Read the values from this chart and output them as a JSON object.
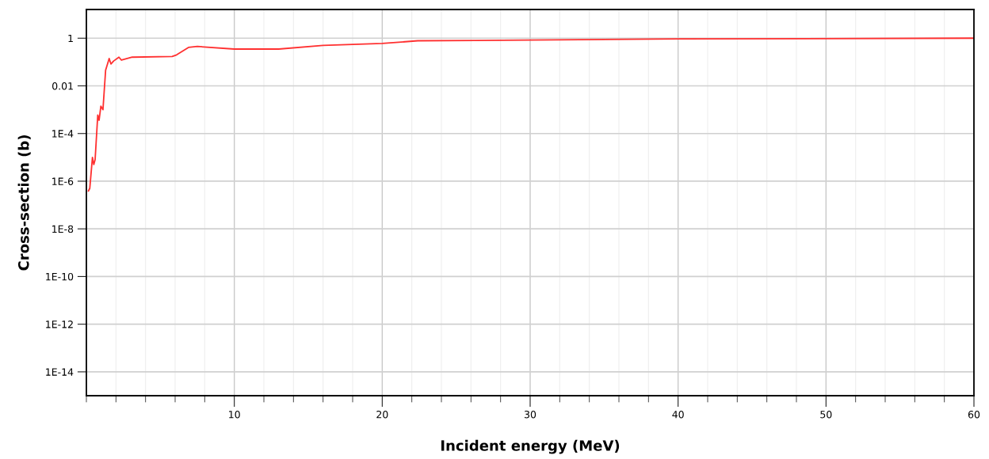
{
  "chart_data": {
    "type": "line",
    "xlabel": "Incident energy (MeV)",
    "ylabel": "Cross-section (b)",
    "log": "y",
    "xlim": [
      0,
      60
    ],
    "xticks": [
      10,
      20,
      30,
      40,
      50,
      60
    ],
    "ylim": [
      1e-15,
      16
    ],
    "yticks": [
      {
        "value": 1,
        "label": "1"
      },
      {
        "value": 0.01,
        "label": "0.01"
      },
      {
        "value": 0.0001,
        "label": "1E-4"
      },
      {
        "value": 1e-06,
        "label": "1E-6"
      },
      {
        "value": 1e-08,
        "label": "1E-8"
      },
      {
        "value": 1e-10,
        "label": "1E-10"
      },
      {
        "value": 1e-12,
        "label": "1E-12"
      },
      {
        "value": 1e-14,
        "label": "1E-14"
      }
    ],
    "grid": true,
    "marker": "none",
    "line_style": "solid",
    "series": [
      {
        "color": "#ff3030",
        "x": [
          0.14,
          0.23,
          0.41,
          0.5,
          0.59,
          0.77,
          0.86,
          0.98,
          1.12,
          1.3,
          1.54,
          1.66,
          1.84,
          2.2,
          2.37,
          3.1,
          5.8,
          6.1,
          6.9,
          7.5,
          10,
          13,
          16,
          20,
          22.4,
          26.3,
          40,
          60
        ],
        "values": [
          3.9e-07,
          5e-07,
          1e-05,
          5e-06,
          8e-06,
          0.0006,
          0.00036,
          0.0014,
          0.001,
          0.045,
          0.14,
          0.083,
          0.11,
          0.16,
          0.12,
          0.16,
          0.17,
          0.2,
          0.41,
          0.45,
          0.35,
          0.35,
          0.5,
          0.6,
          0.78,
          0.8,
          0.93,
          1.0
        ]
      }
    ]
  }
}
